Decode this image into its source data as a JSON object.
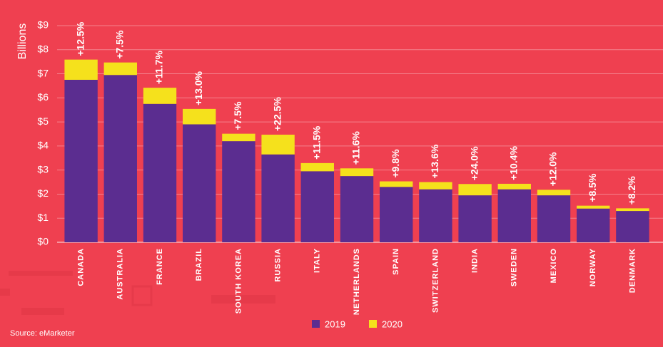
{
  "chart_data": {
    "type": "stacked_bar",
    "y_label": "Billions",
    "source": "Source: eMarketer",
    "categories": [
      "CANADA",
      "AUSTRALIA",
      "FRANCE",
      "BRAZIL",
      "SOUTH KOREA",
      "RUSSIA",
      "ITALY",
      "NETHERLANDS",
      "SPAIN",
      "SWITZERLAND",
      "INDIA",
      "SWEDEN",
      "MEXICO",
      "NORWAY",
      "DENMARK"
    ],
    "series": [
      {
        "name": "2019",
        "color": "#5b2d90",
        "values": [
          6.75,
          6.95,
          5.75,
          4.9,
          4.2,
          3.65,
          2.95,
          2.75,
          2.3,
          2.2,
          1.95,
          2.2,
          1.95,
          1.4,
          1.3
        ]
      },
      {
        "name": "2020",
        "color": "#f5e11c",
        "values": [
          0.84,
          0.52,
          0.67,
          0.64,
          0.31,
          0.82,
          0.34,
          0.32,
          0.23,
          0.3,
          0.47,
          0.23,
          0.23,
          0.12,
          0.11
        ]
      }
    ],
    "growth_labels": [
      "+12.5%",
      "+7.5%",
      "+11.7%",
      "+13.0%",
      "+7.5%",
      "+22.5%",
      "+11.5%",
      "+11.6%",
      "+9.8%",
      "+13.6%",
      "+24.0%",
      "+10.4%",
      "+12.0%",
      "+8.5%",
      "+8.2%"
    ],
    "ylim": [
      0,
      9
    ],
    "yticks": [
      {
        "value": 0,
        "label": "$0"
      },
      {
        "value": 1,
        "label": "$1"
      },
      {
        "value": 2,
        "label": "$2"
      },
      {
        "value": 3,
        "label": "$3"
      },
      {
        "value": 4,
        "label": "$4"
      },
      {
        "value": 5,
        "label": "$5"
      },
      {
        "value": 6,
        "label": "$6"
      },
      {
        "value": 7,
        "label": "$7"
      },
      {
        "value": 8,
        "label": "$8"
      },
      {
        "value": 9,
        "label": "$9"
      }
    ],
    "grid": true
  }
}
